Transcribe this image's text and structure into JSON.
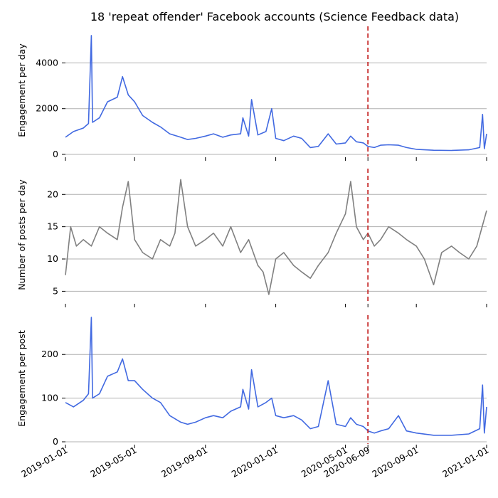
{
  "chart_data": {
    "type": "line",
    "title": "18 'repeat offender' Facebook accounts (Science Feedback data)",
    "x_range": [
      "2019-01-01",
      "2021-01-01"
    ],
    "x_ticks": [
      "2019-01-01",
      "2019-05-01",
      "2019-09-01",
      "2020-01-01",
      "2020-05-01",
      "2020-09-01",
      "2021-01-01"
    ],
    "highlight": {
      "date": "2020-06-09",
      "label": "2020-06-09",
      "color": "#cc0000"
    },
    "grid": "horizontal",
    "panels": [
      {
        "ylabel": "Engagement per day",
        "ylim": [
          0,
          5600
        ],
        "yticks": [
          0,
          2000,
          4000
        ],
        "series": [
          {
            "color": "#4169e1",
            "points": [
              [
                "2019-01-01",
                750
              ],
              [
                "2019-01-15",
                1000
              ],
              [
                "2019-02-01",
                1150
              ],
              [
                "2019-02-10",
                1350
              ],
              [
                "2019-02-15",
                5200
              ],
              [
                "2019-02-17",
                1400
              ],
              [
                "2019-03-01",
                1600
              ],
              [
                "2019-03-15",
                2300
              ],
              [
                "2019-04-01",
                2500
              ],
              [
                "2019-04-10",
                3400
              ],
              [
                "2019-04-20",
                2600
              ],
              [
                "2019-05-01",
                2300
              ],
              [
                "2019-05-15",
                1700
              ],
              [
                "2019-06-01",
                1400
              ],
              [
                "2019-06-15",
                1200
              ],
              [
                "2019-07-01",
                900
              ],
              [
                "2019-07-20",
                750
              ],
              [
                "2019-08-01",
                650
              ],
              [
                "2019-08-15",
                700
              ],
              [
                "2019-09-01",
                800
              ],
              [
                "2019-09-15",
                900
              ],
              [
                "2019-10-01",
                750
              ],
              [
                "2019-10-15",
                850
              ],
              [
                "2019-11-01",
                900
              ],
              [
                "2019-11-05",
                1600
              ],
              [
                "2019-11-15",
                800
              ],
              [
                "2019-11-20",
                2400
              ],
              [
                "2019-12-01",
                850
              ],
              [
                "2019-12-15",
                1000
              ],
              [
                "2019-12-25",
                2000
              ],
              [
                "2020-01-01",
                700
              ],
              [
                "2020-01-15",
                600
              ],
              [
                "2020-02-01",
                800
              ],
              [
                "2020-02-15",
                700
              ],
              [
                "2020-03-01",
                300
              ],
              [
                "2020-03-15",
                350
              ],
              [
                "2020-04-01",
                900
              ],
              [
                "2020-04-15",
                450
              ],
              [
                "2020-05-01",
                500
              ],
              [
                "2020-05-10",
                800
              ],
              [
                "2020-05-20",
                550
              ],
              [
                "2020-06-01",
                500
              ],
              [
                "2020-06-09",
                350
              ],
              [
                "2020-06-20",
                300
              ],
              [
                "2020-07-01",
                400
              ],
              [
                "2020-07-15",
                420
              ],
              [
                "2020-08-01",
                400
              ],
              [
                "2020-08-15",
                300
              ],
              [
                "2020-09-01",
                220
              ],
              [
                "2020-10-01",
                180
              ],
              [
                "2020-11-01",
                170
              ],
              [
                "2020-12-01",
                200
              ],
              [
                "2020-12-20",
                300
              ],
              [
                "2020-12-25",
                1750
              ],
              [
                "2020-12-28",
                250
              ],
              [
                "2021-01-01",
                900
              ]
            ]
          }
        ]
      },
      {
        "ylabel": "Number of posts per day",
        "ylim": [
          3.5,
          24
        ],
        "yticks": [
          5,
          10,
          15,
          20
        ],
        "series": [
          {
            "color": "#808080",
            "points": [
              [
                "2019-01-01",
                7.5
              ],
              [
                "2019-01-10",
                15
              ],
              [
                "2019-01-20",
                12
              ],
              [
                "2019-02-01",
                13
              ],
              [
                "2019-02-15",
                12
              ],
              [
                "2019-03-01",
                15
              ],
              [
                "2019-03-15",
                14
              ],
              [
                "2019-04-01",
                13
              ],
              [
                "2019-04-10",
                18
              ],
              [
                "2019-04-20",
                22
              ],
              [
                "2019-05-01",
                13
              ],
              [
                "2019-05-15",
                11
              ],
              [
                "2019-06-01",
                10
              ],
              [
                "2019-06-15",
                13
              ],
              [
                "2019-07-01",
                12
              ],
              [
                "2019-07-10",
                14
              ],
              [
                "2019-07-20",
                22.3
              ],
              [
                "2019-08-01",
                15
              ],
              [
                "2019-08-15",
                12
              ],
              [
                "2019-09-01",
                13
              ],
              [
                "2019-09-15",
                14
              ],
              [
                "2019-10-01",
                12
              ],
              [
                "2019-10-15",
                15
              ],
              [
                "2019-11-01",
                11
              ],
              [
                "2019-11-15",
                13
              ],
              [
                "2019-12-01",
                9
              ],
              [
                "2019-12-10",
                8
              ],
              [
                "2019-12-20",
                4.5
              ],
              [
                "2020-01-01",
                10
              ],
              [
                "2020-01-15",
                11
              ],
              [
                "2020-02-01",
                9
              ],
              [
                "2020-02-15",
                8
              ],
              [
                "2020-03-01",
                7
              ],
              [
                "2020-03-15",
                9
              ],
              [
                "2020-04-01",
                11
              ],
              [
                "2020-04-15",
                14
              ],
              [
                "2020-05-01",
                17
              ],
              [
                "2020-05-10",
                22
              ],
              [
                "2020-05-20",
                15
              ],
              [
                "2020-06-01",
                13
              ],
              [
                "2020-06-09",
                14
              ],
              [
                "2020-06-20",
                12
              ],
              [
                "2020-07-01",
                13
              ],
              [
                "2020-07-15",
                15
              ],
              [
                "2020-08-01",
                14
              ],
              [
                "2020-08-15",
                13
              ],
              [
                "2020-09-01",
                12
              ],
              [
                "2020-09-15",
                10
              ],
              [
                "2020-10-01",
                6
              ],
              [
                "2020-10-15",
                11
              ],
              [
                "2020-11-01",
                12
              ],
              [
                "2020-11-15",
                11
              ],
              [
                "2020-12-01",
                10
              ],
              [
                "2020-12-15",
                12
              ],
              [
                "2021-01-01",
                17.5
              ]
            ]
          }
        ]
      },
      {
        "ylabel": "Engagement per post",
        "ylim": [
          0,
          290
        ],
        "yticks": [
          0,
          100,
          200
        ],
        "series": [
          {
            "color": "#4169e1",
            "points": [
              [
                "2019-01-01",
                90
              ],
              [
                "2019-01-15",
                80
              ],
              [
                "2019-02-01",
                95
              ],
              [
                "2019-02-10",
                110
              ],
              [
                "2019-02-15",
                285
              ],
              [
                "2019-02-17",
                100
              ],
              [
                "2019-03-01",
                110
              ],
              [
                "2019-03-15",
                150
              ],
              [
                "2019-04-01",
                160
              ],
              [
                "2019-04-10",
                190
              ],
              [
                "2019-04-20",
                140
              ],
              [
                "2019-05-01",
                140
              ],
              [
                "2019-05-15",
                120
              ],
              [
                "2019-06-01",
                100
              ],
              [
                "2019-06-15",
                90
              ],
              [
                "2019-07-01",
                60
              ],
              [
                "2019-07-20",
                45
              ],
              [
                "2019-08-01",
                40
              ],
              [
                "2019-08-15",
                45
              ],
              [
                "2019-09-01",
                55
              ],
              [
                "2019-09-15",
                60
              ],
              [
                "2019-10-01",
                55
              ],
              [
                "2019-10-15",
                70
              ],
              [
                "2019-11-01",
                80
              ],
              [
                "2019-11-05",
                120
              ],
              [
                "2019-11-15",
                75
              ],
              [
                "2019-11-20",
                165
              ],
              [
                "2019-12-01",
                80
              ],
              [
                "2019-12-15",
                90
              ],
              [
                "2019-12-25",
                100
              ],
              [
                "2020-01-01",
                60
              ],
              [
                "2020-01-15",
                55
              ],
              [
                "2020-02-01",
                60
              ],
              [
                "2020-02-15",
                50
              ],
              [
                "2020-03-01",
                30
              ],
              [
                "2020-03-15",
                35
              ],
              [
                "2020-04-01",
                140
              ],
              [
                "2020-04-15",
                40
              ],
              [
                "2020-05-01",
                35
              ],
              [
                "2020-05-10",
                55
              ],
              [
                "2020-05-20",
                40
              ],
              [
                "2020-06-01",
                35
              ],
              [
                "2020-06-09",
                25
              ],
              [
                "2020-06-20",
                20
              ],
              [
                "2020-07-01",
                25
              ],
              [
                "2020-07-15",
                30
              ],
              [
                "2020-08-01",
                60
              ],
              [
                "2020-08-15",
                25
              ],
              [
                "2020-09-01",
                20
              ],
              [
                "2020-10-01",
                15
              ],
              [
                "2020-11-01",
                15
              ],
              [
                "2020-12-01",
                18
              ],
              [
                "2020-12-20",
                30
              ],
              [
                "2020-12-25",
                130
              ],
              [
                "2020-12-28",
                20
              ],
              [
                "2021-01-01",
                80
              ]
            ]
          }
        ]
      }
    ]
  }
}
